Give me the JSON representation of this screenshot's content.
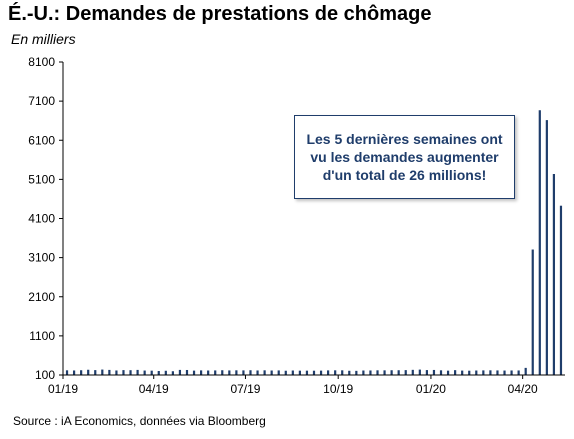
{
  "title": "É.-U.: Demandes de prestations de chômage",
  "subtitle": "En milliers",
  "source": "Source : iA Economics, données via Bloomberg",
  "annotation": "Les 5 dernières semaines ont vu les demandes augmenter d'un total de 26 millions!",
  "colors": {
    "bar": "#1f3d6b",
    "axis": "#000000"
  },
  "chart_data": {
    "type": "bar",
    "ylim": [
      100,
      8100
    ],
    "y_ticks": [
      100,
      1100,
      2100,
      3100,
      4100,
      5100,
      6100,
      7100,
      8100
    ],
    "x_tick_labels": [
      "01/19",
      "04/19",
      "07/19",
      "10/19",
      "01/20",
      "04/20"
    ],
    "grid": false,
    "series": [
      {
        "frequency": "weekly",
        "start": "2019-01-05",
        "values": [
          220,
          216,
          222,
          234,
          225,
          239,
          230,
          216,
          225,
          223,
          230,
          214,
          211,
          202,
          208,
          196,
          230,
          228,
          212,
          218,
          215,
          217,
          222,
          217,
          220,
          218,
          222,
          216,
          220,
          215,
          217,
          209,
          215,
          211,
          211,
          210,
          212,
          218,
          220,
          220,
          208,
          206,
          215,
          216,
          220,
          219,
          222,
          222,
          225,
          232,
          238,
          226,
          229,
          220,
          211,
          224,
          213,
          210,
          215,
          218,
          220,
          217,
          214,
          216,
          216,
          282,
          3307,
          6867,
          6615,
          5237,
          4427
        ]
      }
    ]
  }
}
